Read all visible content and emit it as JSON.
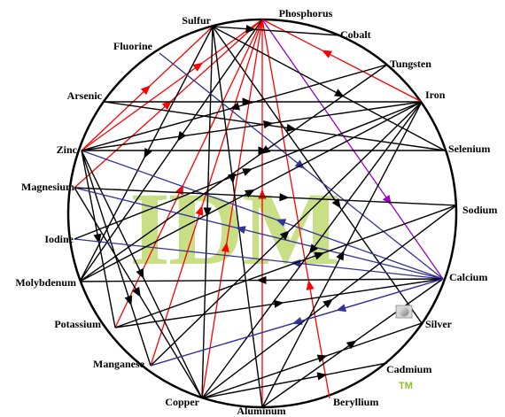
{
  "watermark": {
    "text": "IDM",
    "tm": "TM",
    "color": "#c8df86"
  },
  "colors": {
    "black": "#000000",
    "red": "#ff0000",
    "blue": "#333399",
    "purple": "#9900cc"
  },
  "nodes": {
    "phosphorus": "Phosphorus",
    "cobalt": "Cobalt",
    "tungsten": "Tungsten",
    "iron": "Iron",
    "selenium": "Selenium",
    "sodium": "Sodium",
    "calcium": "Calcium",
    "silver": "Silver",
    "cadmium": "Cadmium",
    "beryllium": "Beryllium",
    "aluminum": "Aluminum",
    "copper": "Copper",
    "manganese": "Manganese",
    "potassium": "Potassium",
    "molybdenum": "Molybdenum",
    "iodine": "Iodine",
    "magnesium": "Magnesium",
    "zinc": "Zinc",
    "arsenic": "Arsenic",
    "fluorine": "Fluorine",
    "sulfur": "Sulfur"
  },
  "edges": [
    {
      "from": "phosphorus",
      "to": "iron",
      "color": "red",
      "arrow": 0.4,
      "dir": "backward"
    },
    {
      "from": "phosphorus",
      "to": "calcium",
      "color": "purple",
      "arrow": 0.7,
      "dir": "forward"
    },
    {
      "from": "phosphorus",
      "to": "beryllium",
      "color": "red",
      "arrow": 0.7,
      "dir": "backward"
    },
    {
      "from": "phosphorus",
      "to": "aluminum",
      "color": "red",
      "arrow": 0.45,
      "dir": "backward"
    },
    {
      "from": "phosphorus",
      "to": "copper",
      "color": "red",
      "arrow": 0.6,
      "dir": "backward"
    },
    {
      "from": "phosphorus",
      "to": "manganese",
      "color": "red",
      "arrow": 0.55,
      "dir": "backward"
    },
    {
      "from": "phosphorus",
      "to": "zinc",
      "color": "red",
      "arrow": 0.35,
      "dir": "backward"
    },
    {
      "from": "phosphorus",
      "to": "magnesium",
      "color": "red",
      "arrow": 0.5,
      "dir": "backward"
    },
    {
      "from": "phosphorus",
      "to": "potassium",
      "color": "red",
      "arrow": 0.55,
      "dir": "backward"
    },
    {
      "from": "phosphorus",
      "to": "molybdenum",
      "color": "black",
      "arrow": 0.45,
      "dir": "forward"
    },
    {
      "from": "sulfur",
      "to": "cobalt",
      "color": "black",
      "arrow": 0.3,
      "dir": "forward"
    },
    {
      "from": "sulfur",
      "to": "copper",
      "color": "black",
      "arrow": 0.5,
      "dir": "forward"
    },
    {
      "from": "sulfur",
      "to": "selenium",
      "color": "black",
      "arrow": 0.55,
      "dir": "forward"
    },
    {
      "from": "sulfur",
      "to": "zinc",
      "color": "red",
      "arrow": 0.5,
      "dir": "backward"
    },
    {
      "from": "sulfur",
      "to": "silver",
      "color": "black",
      "arrow": 0.6,
      "dir": "forward"
    },
    {
      "from": "sulfur",
      "to": "molybdenum",
      "color": "black",
      "arrow": 0.5,
      "dir": "forward"
    },
    {
      "from": "sulfur",
      "to": "aluminum",
      "color": "black",
      "arrow": 0.4,
      "dir": "forward"
    },
    {
      "from": "fluorine",
      "to": "calcium",
      "color": "blue",
      "arrow": 0.5,
      "dir": "forward"
    },
    {
      "from": "arsenic",
      "to": "selenium",
      "color": "black",
      "arrow": 0.55,
      "dir": "forward"
    },
    {
      "from": "arsenic",
      "to": "iron",
      "color": "black",
      "arrow": 0.45,
      "dir": "forward"
    },
    {
      "from": "zinc",
      "to": "iron",
      "color": "black",
      "arrow": 0.55,
      "dir": "forward"
    },
    {
      "from": "zinc",
      "to": "calcium",
      "color": "blue",
      "arrow": 0.55,
      "dir": "backward"
    },
    {
      "from": "zinc",
      "to": "copper",
      "color": "black",
      "arrow": 0.5,
      "dir": "forward"
    },
    {
      "from": "zinc",
      "to": "manganese",
      "color": "black",
      "arrow": 0.7,
      "dir": "forward"
    },
    {
      "from": "zinc",
      "to": "potassium",
      "color": "black",
      "arrow": 0.5,
      "dir": "forward"
    },
    {
      "from": "zinc",
      "to": "selenium",
      "color": "black",
      "arrow": 0.5,
      "dir": "forward"
    },
    {
      "from": "magnesium",
      "to": "calcium",
      "color": "blue",
      "arrow": 0.45,
      "dir": "backward"
    },
    {
      "from": "magnesium",
      "to": "copper",
      "color": "black",
      "arrow": 0.5,
      "dir": "forward"
    },
    {
      "from": "magnesium",
      "to": "sodium",
      "color": "black",
      "arrow": 0.55,
      "dir": "forward"
    },
    {
      "from": "iodine",
      "to": "calcium",
      "color": "blue",
      "arrow": 0.6,
      "dir": "backward"
    },
    {
      "from": "iodine",
      "to": "iron",
      "color": "black",
      "arrow": 0.5,
      "dir": "forward"
    },
    {
      "from": "molybdenum",
      "to": "tungsten",
      "color": "black",
      "arrow": 0.6,
      "dir": "backward"
    },
    {
      "from": "molybdenum",
      "to": "iron",
      "color": "black",
      "arrow": 0.5,
      "dir": "forward"
    },
    {
      "from": "molybdenum",
      "to": "calcium",
      "color": "black",
      "arrow": 0.5,
      "dir": "backward"
    },
    {
      "from": "potassium",
      "to": "sodium",
      "color": "black",
      "arrow": 0.6,
      "dir": "forward"
    },
    {
      "from": "potassium",
      "to": "calcium",
      "color": "black",
      "arrow": 0.5,
      "dir": "forward"
    },
    {
      "from": "manganese",
      "to": "iron",
      "color": "black",
      "arrow": 0.5,
      "dir": "forward"
    },
    {
      "from": "manganese",
      "to": "calcium",
      "color": "blue",
      "arrow": 0.5,
      "dir": "backward"
    },
    {
      "from": "copper",
      "to": "iron",
      "color": "black",
      "arrow": 0.5,
      "dir": "backward"
    },
    {
      "from": "copper",
      "to": "silver",
      "color": "black",
      "arrow": 0.55,
      "dir": "forward"
    },
    {
      "from": "copper",
      "to": "cadmium",
      "color": "black",
      "arrow": 0.65,
      "dir": "forward"
    },
    {
      "from": "copper",
      "to": "sodium",
      "color": "black",
      "arrow": 0.5,
      "dir": "forward"
    },
    {
      "from": "aluminum",
      "to": "calcium",
      "color": "black",
      "arrow": 0.5,
      "dir": "forward"
    },
    {
      "from": "aluminum",
      "to": "iron",
      "color": "black",
      "arrow": 0.5,
      "dir": "forward"
    },
    {
      "from": "calcium",
      "to": "manganese",
      "color": "blue",
      "arrow": 0.35,
      "dir": "forward"
    },
    {
      "from": "tungsten",
      "to": "zinc",
      "color": "black",
      "arrow": 0.5,
      "dir": "forward"
    }
  ]
}
